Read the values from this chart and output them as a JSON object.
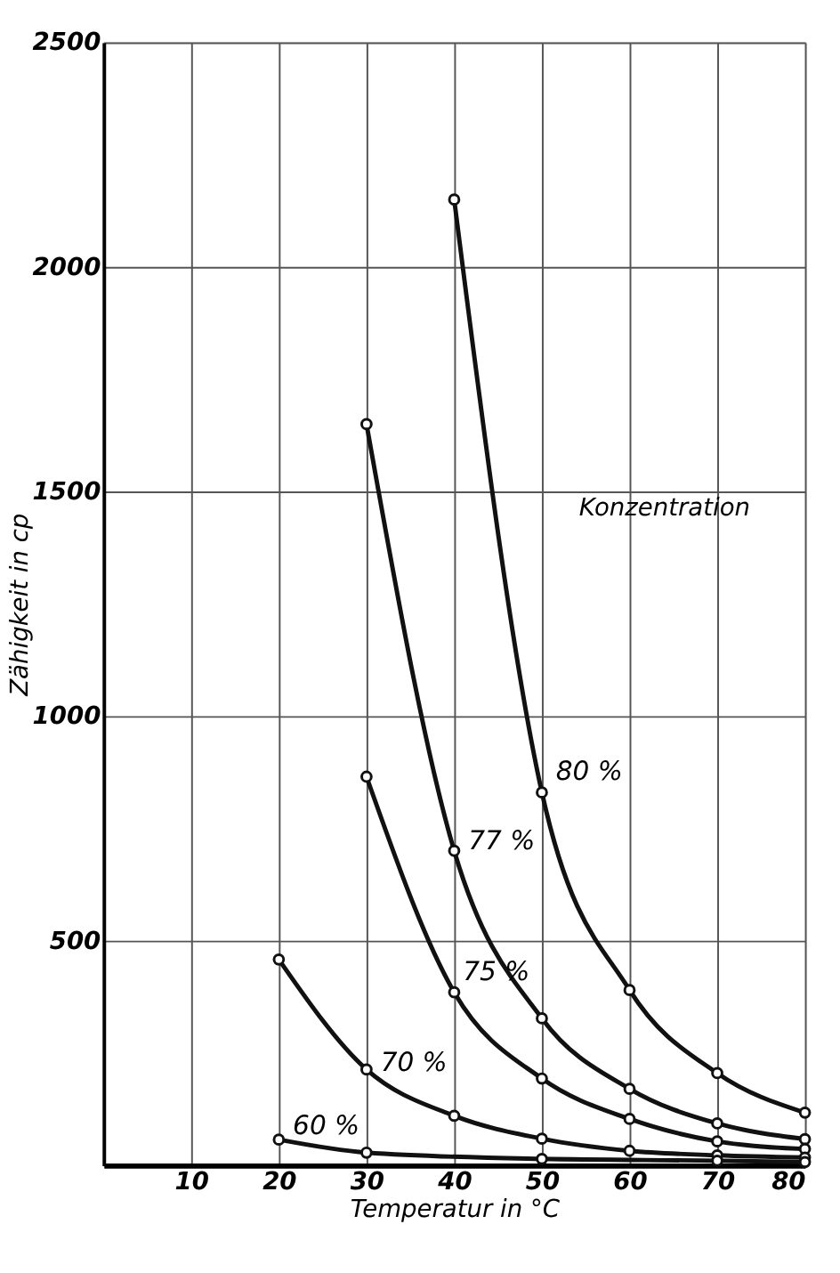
{
  "chart_data": {
    "type": "line",
    "xlabel": "Temperatur in °C",
    "ylabel": "Zähigkeit in cp",
    "annotations": [
      "Konzentration"
    ],
    "xlim": [
      0,
      80
    ],
    "xticks": [
      10,
      20,
      30,
      40,
      50,
      60,
      70,
      80
    ],
    "ylim": [
      0,
      2500
    ],
    "yticks": [
      500,
      1000,
      1500,
      2000,
      2500
    ],
    "grid": true,
    "marker": "circle",
    "line_style": "solid",
    "series": [
      {
        "name": "80 %",
        "color": "#111111",
        "x": [
          40,
          50,
          60,
          70,
          80
        ],
        "values": [
          2150,
          830,
          390,
          205,
          117
        ]
      },
      {
        "name": "77 %",
        "color": "#111111",
        "x": [
          30,
          40,
          50,
          60,
          70,
          80
        ],
        "values": [
          1650,
          700,
          327,
          170,
          93,
          58
        ]
      },
      {
        "name": "75 %",
        "color": "#111111",
        "x": [
          30,
          40,
          50,
          60,
          70,
          80
        ],
        "values": [
          865,
          385,
          193,
          103,
          53,
          36
        ]
      },
      {
        "name": "70 %",
        "color": "#111111",
        "x": [
          20,
          30,
          40,
          50,
          60,
          70,
          80
        ],
        "values": [
          458,
          213,
          110,
          59,
          32,
          22,
          17
        ]
      },
      {
        "name": "60 %",
        "color": "#111111",
        "x": [
          20,
          30,
          50,
          70,
          80
        ],
        "values": [
          57,
          28,
          14,
          10,
          7
        ]
      }
    ]
  }
}
